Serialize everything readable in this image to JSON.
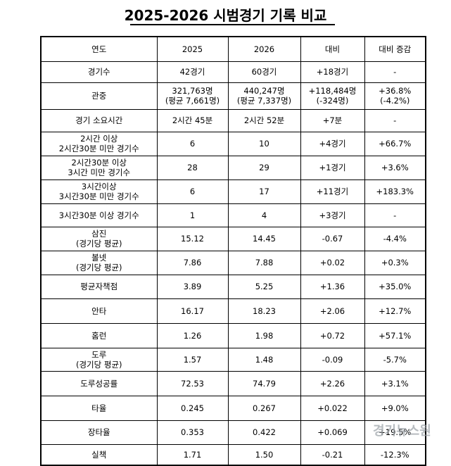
{
  "title": "2025-2026 시범경기 기록 비교",
  "headers": [
    "연도",
    "2025",
    "2026",
    "대비",
    "대비 증감"
  ],
  "rows": [
    {
      "label": [
        "경기수"
      ],
      "v2025": [
        "42경기"
      ],
      "v2026": [
        "60경기"
      ],
      "diff": [
        "+18경기"
      ],
      "pct": [
        "-"
      ]
    },
    {
      "label": [
        "관중"
      ],
      "v2025": [
        "321,763명",
        "(평균 7,661명)"
      ],
      "v2026": [
        "440,247명",
        "(평균 7,337명)"
      ],
      "diff": [
        "+118,484명",
        "(-324명)"
      ],
      "pct": [
        "+36.8%",
        "(-4.2%)"
      ]
    },
    {
      "label": [
        "경기 소요시간"
      ],
      "v2025": [
        "2시간 45분"
      ],
      "v2026": [
        "2시간 52분"
      ],
      "diff": [
        "+7분"
      ],
      "pct": [
        "-"
      ]
    },
    {
      "label": [
        "2시간 이상",
        "2시간30분 미만 경기수"
      ],
      "v2025": [
        "6"
      ],
      "v2026": [
        "10"
      ],
      "diff": [
        "+4경기"
      ],
      "pct": [
        "+66.7%"
      ]
    },
    {
      "label": [
        "2시간30분 이상",
        "3시간 미만 경기수"
      ],
      "v2025": [
        "28"
      ],
      "v2026": [
        "29"
      ],
      "diff": [
        "+1경기"
      ],
      "pct": [
        "+3.6%"
      ]
    },
    {
      "label": [
        "3시간이상",
        "3시간30분 미만 경기수"
      ],
      "v2025": [
        "6"
      ],
      "v2026": [
        "17"
      ],
      "diff": [
        "+11경기"
      ],
      "pct": [
        "+183.3%"
      ]
    },
    {
      "label": [
        "3시간30분 이상 경기수"
      ],
      "v2025": [
        "1"
      ],
      "v2026": [
        "4"
      ],
      "diff": [
        "+3경기"
      ],
      "pct": [
        "-"
      ]
    },
    {
      "label": [
        "삼진",
        "(경기당 평균)"
      ],
      "v2025": [
        "15.12"
      ],
      "v2026": [
        "14.45"
      ],
      "diff": [
        "-0.67"
      ],
      "pct": [
        "-4.4%"
      ]
    },
    {
      "label": [
        "볼넷",
        "(경기당 평균)"
      ],
      "v2025": [
        "7.86"
      ],
      "v2026": [
        "7.88"
      ],
      "diff": [
        "+0.02"
      ],
      "pct": [
        "+0.3%"
      ]
    },
    {
      "label": [
        "평균자책점"
      ],
      "v2025": [
        "3.89"
      ],
      "v2026": [
        "5.25"
      ],
      "diff": [
        "+1.36"
      ],
      "pct": [
        "+35.0%"
      ]
    },
    {
      "label": [
        "안타"
      ],
      "v2025": [
        "16.17"
      ],
      "v2026": [
        "18.23"
      ],
      "diff": [
        "+2.06"
      ],
      "pct": [
        "+12.7%"
      ]
    },
    {
      "label": [
        "홈런"
      ],
      "v2025": [
        "1.26"
      ],
      "v2026": [
        "1.98"
      ],
      "diff": [
        "+0.72"
      ],
      "pct": [
        "+57.1%"
      ]
    },
    {
      "label": [
        "도루",
        "(경기당 평균)"
      ],
      "v2025": [
        "1.57"
      ],
      "v2026": [
        "1.48"
      ],
      "diff": [
        "-0.09"
      ],
      "pct": [
        "-5.7%"
      ]
    },
    {
      "label": [
        "도루성공률"
      ],
      "v2025": [
        "72.53"
      ],
      "v2026": [
        "74.79"
      ],
      "diff": [
        "+2.26"
      ],
      "pct": [
        "+3.1%"
      ]
    },
    {
      "label": [
        "타율"
      ],
      "v2025": [
        "0.245"
      ],
      "v2026": [
        "0.267"
      ],
      "diff": [
        "+0.022"
      ],
      "pct": [
        "+9.0%"
      ]
    },
    {
      "label": [
        "장타율"
      ],
      "v2025": [
        "0.353"
      ],
      "v2026": [
        "0.422"
      ],
      "diff": [
        "+0.069"
      ],
      "pct": [
        "+19.5%"
      ]
    },
    {
      "label": [
        "실책"
      ],
      "v2025": [
        "1.71"
      ],
      "v2026": [
        "1.50"
      ],
      "diff": [
        "-0.21"
      ],
      "pct": [
        "-12.3%"
      ]
    }
  ],
  "watermark": "경기뉴스원"
}
